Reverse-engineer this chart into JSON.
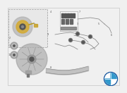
{
  "bg_color": "#f0f0f0",
  "border_color": "#bbbbbb",
  "wire_color": "#888888",
  "dark_gray": "#555555",
  "mid_gray": "#999999",
  "light_gray": "#cccccc",
  "brown_gold": "#b8960a",
  "part_gray": "#aaaaaa",
  "inset_bg": "#e8e8e8",
  "white": "#ffffff",
  "bmw_blue": "#1a5aa0",
  "bmw_lightblue": "#3399cc"
}
